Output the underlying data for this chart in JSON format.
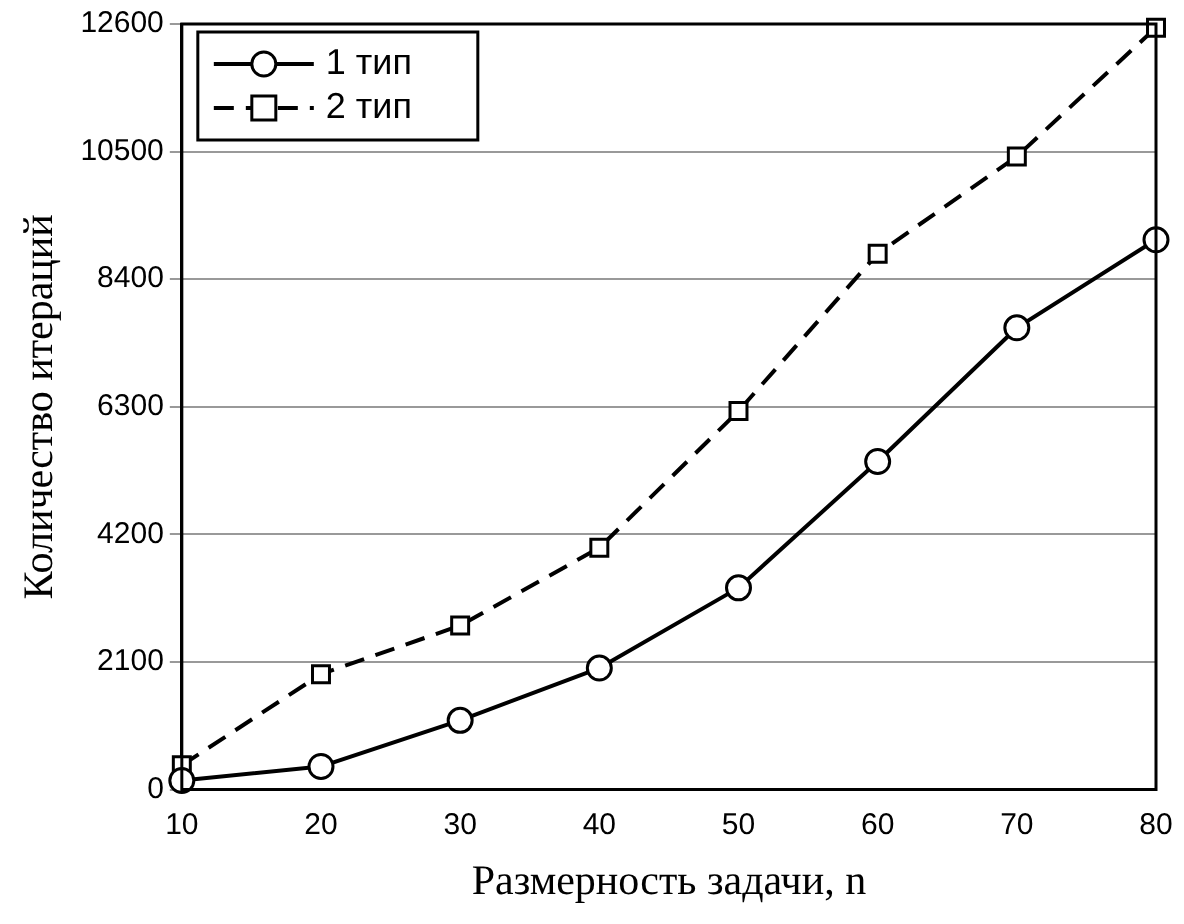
{
  "chart_data": {
    "type": "line",
    "xlabel": "Размерность задачи, n",
    "ylabel": "Количество итераций",
    "x": [
      10,
      20,
      30,
      40,
      50,
      60,
      70,
      80
    ],
    "series": [
      {
        "name": "1 тип",
        "color": "#000000",
        "marker": "circle",
        "line_style": "solid",
        "values": [
          150,
          380,
          1140,
          2000,
          3320,
          5400,
          7600,
          9050
        ]
      },
      {
        "name": "2 тип",
        "color": "#000000",
        "marker": "square",
        "line_style": "dashed",
        "values": [
          400,
          1900,
          2700,
          3980,
          6230,
          8820,
          10420,
          12540
        ]
      }
    ],
    "xlim": [
      10,
      80
    ],
    "xticks": [
      10,
      20,
      30,
      40,
      50,
      60,
      70,
      80
    ],
    "ylim": [
      0,
      12600
    ],
    "yticks": [
      0,
      2100,
      4200,
      6300,
      8400,
      10500,
      12600
    ],
    "grid": "y",
    "legend": "top left"
  }
}
